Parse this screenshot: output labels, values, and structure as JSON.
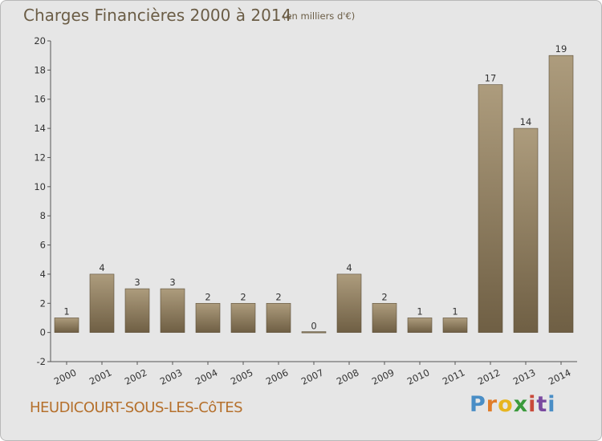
{
  "header": {
    "title": "Charges Financières 2000 à 2014",
    "subtitle": "(en milliers d'€)"
  },
  "footer": {
    "commune": "HEUDICOURT-SOUS-LES-CôTES",
    "logo_letters": [
      "P",
      "r",
      "o",
      "x",
      "i",
      "t",
      "i"
    ]
  },
  "colors": {
    "bar_dark": "#6f5f44",
    "bar_light": "#ad9c7d",
    "background": "#e6e6e6",
    "title": "#6b5d46",
    "commune": "#b5702c"
  },
  "chart_data": {
    "type": "bar",
    "title": "Charges Financières 2000 à 2014",
    "subtitle": "(en milliers d'€)",
    "xlabel": "",
    "ylabel": "",
    "categories": [
      "2000",
      "2001",
      "2002",
      "2003",
      "2004",
      "2005",
      "2006",
      "2007",
      "2008",
      "2009",
      "2010",
      "2011",
      "2012",
      "2013",
      "2014"
    ],
    "values": [
      1,
      4,
      3,
      3,
      2,
      2,
      2,
      0,
      4,
      2,
      1,
      1,
      17,
      14,
      19
    ],
    "data_labels": [
      "1",
      "4",
      "3",
      "3",
      "2",
      "2",
      "2",
      "0",
      "4",
      "2",
      "1",
      "1",
      "17",
      "14",
      "19"
    ],
    "ylim": [
      -2,
      20
    ],
    "yticks": [
      -2,
      0,
      2,
      4,
      6,
      8,
      10,
      12,
      14,
      16,
      18,
      20
    ],
    "grid": false,
    "legend": "none"
  }
}
